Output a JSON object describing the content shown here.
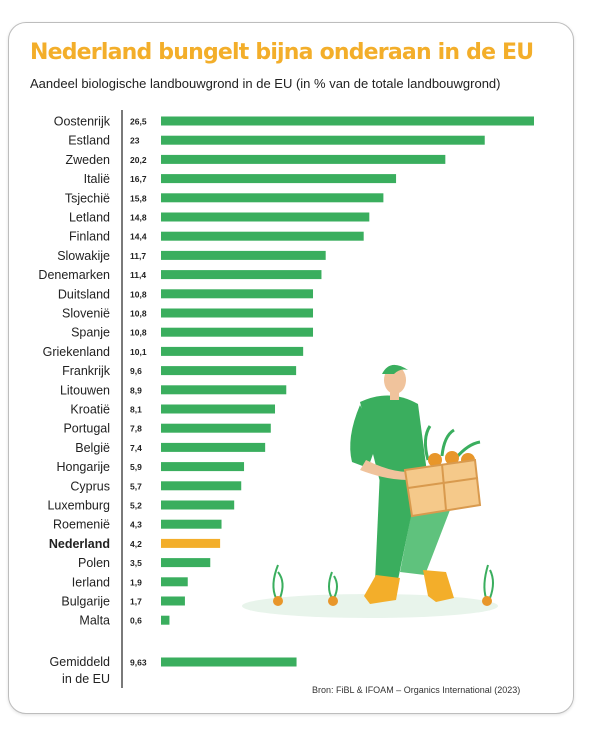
{
  "header": {
    "title": "Nederland bungelt bijna onderaan in de EU",
    "subtitle": "Aandeel biologische landbouwgrond in de EU (in % van de totale landbouwgrond)"
  },
  "footer": {
    "source": "Bron: FiBL & IFOAM – Organics International (2023)"
  },
  "colors": {
    "title": "#f3ae2a",
    "bar": "#3aae5e",
    "highlight_bar": "#f3ae2a"
  },
  "chart_data": {
    "type": "bar",
    "orientation": "horizontal",
    "categories": [
      "Oostenrijk",
      "Estland",
      "Zweden",
      "Italië",
      "Tsjechië",
      "Letland",
      "Finland",
      "Slowakije",
      "Denemarken",
      "Duitsland",
      "Slovenië",
      "Spanje",
      "Griekenland",
      "Frankrijk",
      "Litouwen",
      "Kroatië",
      "Portugal",
      "België",
      "Hongarije",
      "Cyprus",
      "Luxemburg",
      "Roemenië",
      "Nederland",
      "Polen",
      "Ierland",
      "Bulgarije",
      "Malta"
    ],
    "value_labels": [
      "26,5",
      "23",
      "20,2",
      "16,7",
      "15,8",
      "14,8",
      "14,4",
      "11,7",
      "11,4",
      "10,8",
      "10,8",
      "10,8",
      "10,1",
      "9,6",
      "8,9",
      "8,1",
      "7,8",
      "7,4",
      "5,9",
      "5,7",
      "5,2",
      "4,3",
      "4,2",
      "3,5",
      "1,9",
      "1,7",
      "0,6"
    ],
    "values": [
      26.5,
      23,
      20.2,
      16.7,
      15.8,
      14.8,
      14.4,
      11.7,
      11.4,
      10.8,
      10.8,
      10.8,
      10.1,
      9.6,
      8.9,
      8.1,
      7.8,
      7.4,
      5.9,
      5.7,
      5.2,
      4.3,
      4.2,
      3.5,
      1.9,
      1.7,
      0.6
    ],
    "highlight": "Nederland",
    "average": {
      "label_lines": [
        "Gemiddeld",
        "in de EU"
      ],
      "value": 9.63,
      "value_label": "9,63"
    },
    "xlim": [
      0,
      26.5
    ],
    "grid": false
  }
}
